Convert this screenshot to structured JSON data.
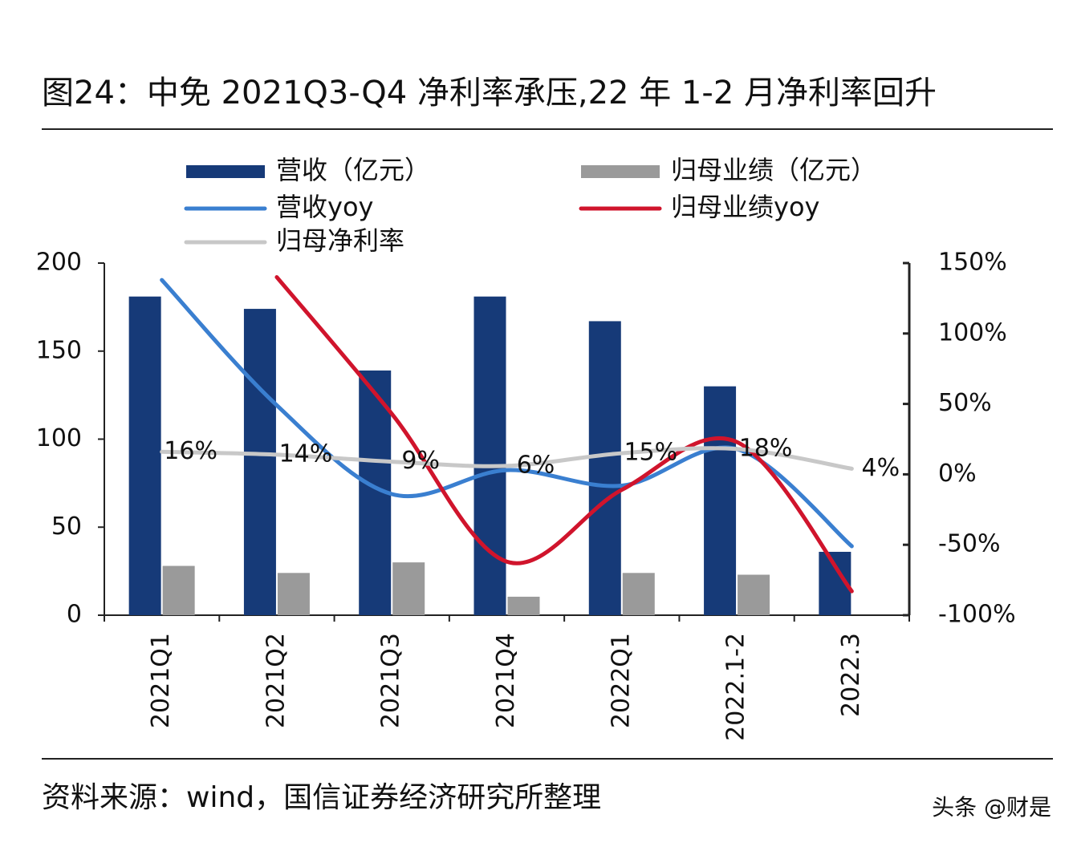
{
  "chart_data": {
    "type": "bar",
    "title": "图24：中免 2021Q3-Q4 净利率承压,22 年 1-2 月净利率回升",
    "source": "资料来源：wind，国信证券经济研究所整理",
    "watermark": "头条 @财是",
    "categories": [
      "2021Q1",
      "2021Q2",
      "2021Q3",
      "2021Q4",
      "2022Q1",
      "2022.1-2",
      "2022.3"
    ],
    "series": [
      {
        "name": "营收（亿元）",
        "type": "bar",
        "color": "#163a78",
        "values": [
          181,
          174,
          139,
          181,
          167,
          130,
          36
        ]
      },
      {
        "name": "归母业绩（亿元）",
        "type": "bar",
        "color": "#9a9a9a",
        "values": [
          28,
          24,
          30,
          10.5,
          24,
          23,
          null
        ]
      },
      {
        "name": "营收yoy",
        "type": "line",
        "axis": "y2",
        "color": "#3a7fd0",
        "values": [
          138,
          49,
          -14,
          3,
          -8,
          18,
          -51
        ]
      },
      {
        "name": "归母业绩yoy",
        "type": "line",
        "axis": "y2",
        "color": "#d0142c",
        "values": [
          null,
          140,
          43,
          -62,
          -11,
          23,
          -83
        ]
      },
      {
        "name": "归母净利率",
        "type": "line",
        "axis": "y2",
        "color": "#c8c8c8",
        "values": [
          16,
          14,
          9,
          6,
          15,
          18,
          4
        ],
        "value_labels": [
          "16%",
          "14%",
          "9%",
          "6%",
          "15%",
          "18%",
          "4%"
        ]
      }
    ],
    "ylim": [
      0,
      200
    ],
    "yticks": [
      0,
      50,
      100,
      150,
      200
    ],
    "y2lim": [
      -100,
      150
    ],
    "y2ticks": [
      {
        "value": -100,
        "label": "-100%"
      },
      {
        "value": -50,
        "label": "-50%"
      },
      {
        "value": 0,
        "label": "0%"
      },
      {
        "value": 50,
        "label": "50%"
      },
      {
        "value": 100,
        "label": "100%"
      },
      {
        "value": 150,
        "label": "150%"
      }
    ],
    "grid": false
  }
}
